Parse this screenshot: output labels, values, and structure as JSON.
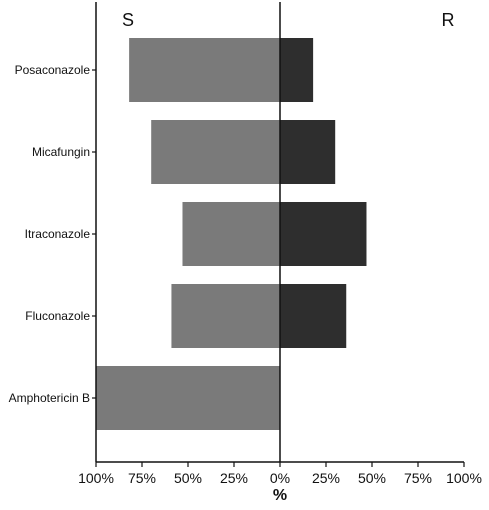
{
  "chart_data": {
    "type": "bar",
    "orientation": "horizontal-diverging",
    "categories": [
      "Posaconazole",
      "Micafungin",
      "Itraconazole",
      "Fluconazole",
      "Amphotericin B"
    ],
    "series": [
      {
        "name": "S",
        "values": [
          82,
          70,
          53,
          59,
          100
        ],
        "color": "#7a7a7a",
        "direction": "left"
      },
      {
        "name": "R",
        "values": [
          18,
          30,
          47,
          36,
          0
        ],
        "color": "#2e2e2e",
        "direction": "right"
      }
    ],
    "side_labels": {
      "left": "S",
      "right": "R"
    },
    "xlabel": "%",
    "ylabel": "",
    "xlim": [
      -100,
      100
    ],
    "xticks": [
      "100%",
      "75%",
      "50%",
      "25%",
      "0%",
      "25%",
      "50%",
      "75%",
      "100%"
    ],
    "grid": false,
    "legend": "none"
  }
}
